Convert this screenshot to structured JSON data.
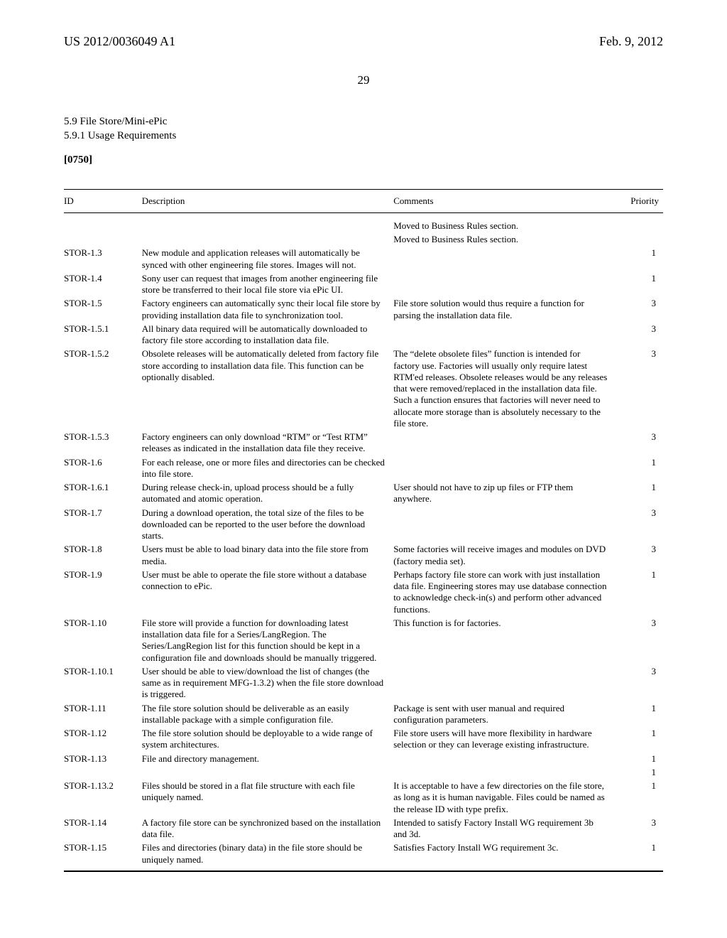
{
  "header": {
    "pub_left": "US 2012/0036049 A1",
    "pub_right": "Feb. 9, 2012",
    "page_number": "29"
  },
  "section": {
    "line1": "5.9 File Store/Mini-ePic",
    "line2": "5.9.1 Usage Requirements",
    "para_num": "[0750]"
  },
  "table": {
    "headers": {
      "id": "ID",
      "description": "Description",
      "comments": "Comments",
      "priority": "Priority"
    },
    "rows": [
      {
        "id": "",
        "description": "",
        "comments": "Moved to Business Rules section.",
        "priority": ""
      },
      {
        "id": "",
        "description": "",
        "comments": "Moved to Business Rules section.",
        "priority": ""
      },
      {
        "id": "STOR-1.3",
        "description": "New module and application releases will automatically be synced with other engineering file stores. Images will not.",
        "comments": "",
        "priority": "1"
      },
      {
        "id": "STOR-1.4",
        "description": "Sony user can request that images from another engineering file store be transferred to their local file store via ePic UI.",
        "comments": "",
        "priority": "1"
      },
      {
        "id": "STOR-1.5",
        "description": "Factory engineers can automatically sync their local file store by providing installation data file to synchronization tool.",
        "comments": "File store solution would thus require a function for parsing the installation data file.",
        "priority": "3"
      },
      {
        "id": "STOR-1.5.1",
        "description": "All binary data required will be automatically downloaded to factory file store according to installation data file.",
        "comments": "",
        "priority": "3"
      },
      {
        "id": "STOR-1.5.2",
        "description": "Obsolete releases will be automatically deleted from factory file store according to installation data file. This function can be optionally disabled.",
        "comments": "The “delete obsolete files” function is intended for factory use. Factories will usually only require latest RTM'ed releases. Obsolete releases would be any releases that were removed/replaced in the installation data file. Such a function ensures that factories will never need to allocate more storage than is absolutely necessary to the file store.",
        "priority": "3"
      },
      {
        "id": "STOR-1.5.3",
        "description": "Factory engineers can only download “RTM” or “Test RTM” releases as indicated in the installation data file they receive.",
        "comments": "",
        "priority": "3"
      },
      {
        "id": "STOR-1.6",
        "description": "For each release, one or more files and directories can be checked into file store.",
        "comments": "",
        "priority": "1"
      },
      {
        "id": "STOR-1.6.1",
        "description": "During release check-in, upload process should be a fully automated and atomic operation.",
        "comments": "User should not have to zip up files or FTP them anywhere.",
        "priority": "1"
      },
      {
        "id": "STOR-1.7",
        "description": "During a download operation, the total size of the files to be downloaded can be reported to the user before the download starts.",
        "comments": "",
        "priority": "3"
      },
      {
        "id": "STOR-1.8",
        "description": "Users must be able to load binary data into the file store from media.",
        "comments": "Some factories will receive images and modules on DVD (factory media set).",
        "priority": "3"
      },
      {
        "id": "STOR-1.9",
        "description": "User must be able to operate the file store without a database connection to ePic.",
        "comments": "Perhaps factory file store can work with just installation data file. Engineering stores may use database connection to acknowledge check-in(s) and perform other advanced functions.",
        "priority": "1"
      },
      {
        "id": "STOR-1.10",
        "description": "File store will provide a function for downloading latest installation data file for a Series/LangRegion. The Series/LangRegion list for this function should be kept in a configuration file and downloads should be manually triggered.",
        "comments": "This function is for factories.",
        "priority": "3"
      },
      {
        "id": "STOR-1.10.1",
        "description": "User should be able to view/download the list of changes (the same as in requirement MFG-1.3.2) when the file store download is triggered.",
        "comments": "",
        "priority": "3"
      },
      {
        "id": "STOR-1.11",
        "description": "The file store solution should be deliverable as an easily installable package with a simple configuration file.",
        "comments": "Package is sent with user manual and required configuration parameters.",
        "priority": "1"
      },
      {
        "id": "STOR-1.12",
        "description": "The file store solution should be deployable to a wide range of system architectures.",
        "comments": "File store users will have more flexibility in hardware selection or they can leverage existing infrastructure.",
        "priority": "1"
      },
      {
        "id": "STOR-1.13",
        "description": "File and directory management.",
        "comments": "",
        "priority": "1"
      },
      {
        "id": "",
        "description": "",
        "comments": "",
        "priority": "1"
      },
      {
        "id": "STOR-1.13.2",
        "description": "Files should be stored in a flat file structure with each file uniquely named.",
        "comments": "It is acceptable to have a few directories on the file store, as long as it is human navigable. Files could be named as the release ID with type prefix.",
        "priority": "1"
      },
      {
        "id": "STOR-1.14",
        "description": "A factory file store can be synchronized based on the installation data file.",
        "comments": "Intended to satisfy Factory Install WG requirement 3b and 3d.",
        "priority": "3"
      },
      {
        "id": "STOR-1.15",
        "description": "Files and directories (binary data) in the file store should be uniquely named.",
        "comments": "Satisfies Factory Install WG requirement 3c.",
        "priority": "1"
      }
    ]
  }
}
